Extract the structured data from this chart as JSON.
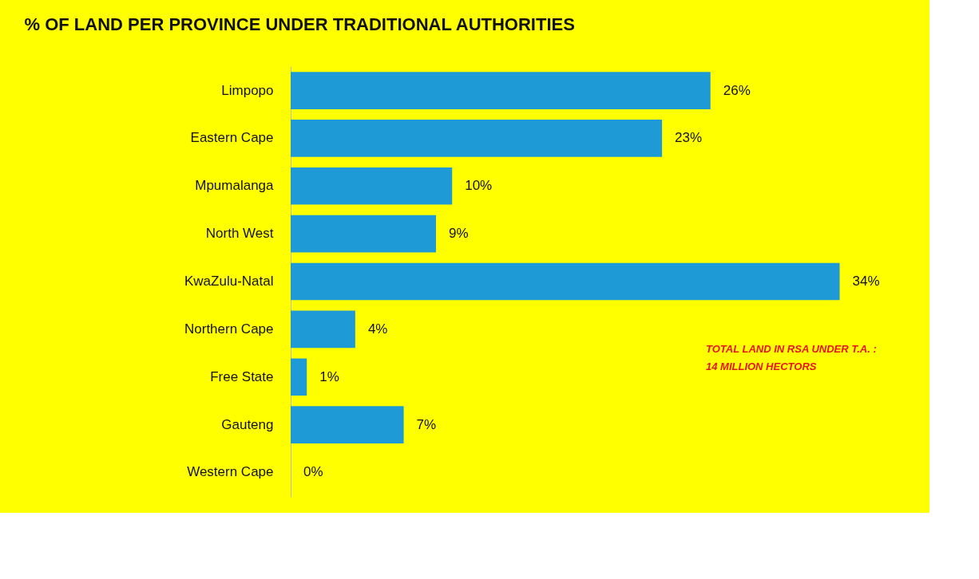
{
  "chart_data": {
    "type": "bar",
    "orientation": "horizontal",
    "title": "% OF LAND PER PROVINCE UNDER TRADITIONAL AUTHORITIES",
    "categories": [
      "Limpopo",
      "Eastern Cape",
      "Mpumalanga",
      "North West",
      "KwaZulu-Natal",
      "Northern Cape",
      "Free State",
      "Gauteng",
      "Western Cape"
    ],
    "values": [
      26,
      23,
      10,
      9,
      34,
      4,
      1,
      7,
      0
    ],
    "value_labels": [
      "26%",
      "23%",
      "10%",
      "9%",
      "34%",
      "4%",
      "1%",
      "7%",
      "0%"
    ],
    "color": "#1e9ad6",
    "annotations": [
      "TOTAL LAND IN RSA UNDER T.A. :",
      "14 MILLION HECTORS"
    ],
    "grid": false
  }
}
